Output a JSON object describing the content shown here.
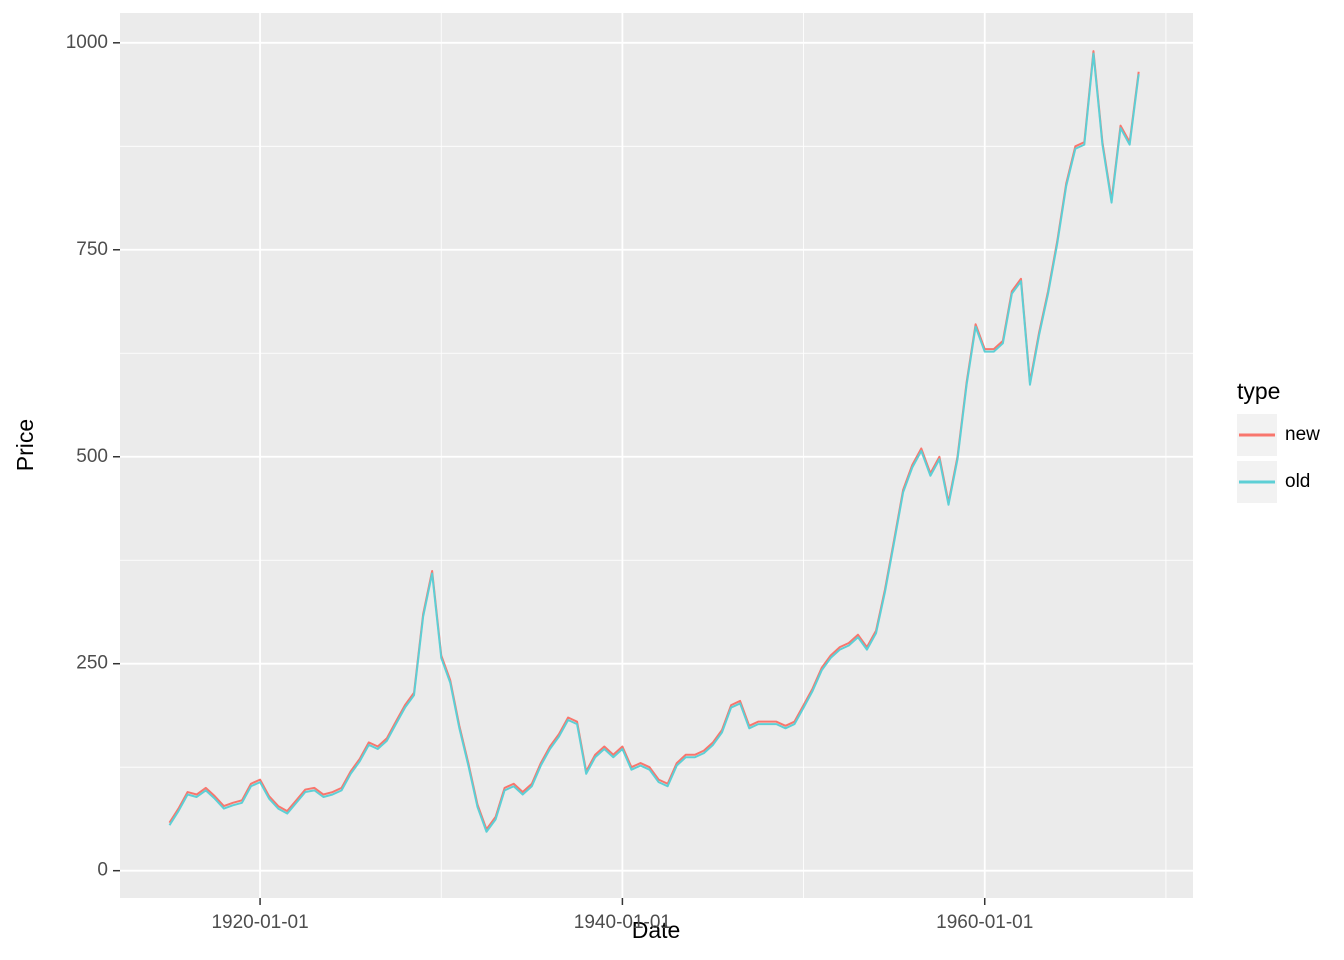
{
  "chart_data": {
    "type": "line",
    "xlabel": "Date",
    "ylabel": "Price",
    "legend_title": "type",
    "x": [
      "1915-01-01",
      "1915-07-01",
      "1916-01-01",
      "1916-07-01",
      "1917-01-01",
      "1917-07-01",
      "1918-01-01",
      "1918-07-01",
      "1919-01-01",
      "1919-07-01",
      "1920-01-01",
      "1920-07-01",
      "1921-01-01",
      "1921-07-01",
      "1922-01-01",
      "1922-07-01",
      "1923-01-01",
      "1923-07-01",
      "1924-01-01",
      "1924-07-01",
      "1925-01-01",
      "1925-07-01",
      "1926-01-01",
      "1926-07-01",
      "1927-01-01",
      "1927-07-01",
      "1928-01-01",
      "1928-07-01",
      "1929-01-01",
      "1929-07-01",
      "1930-01-01",
      "1930-07-01",
      "1931-01-01",
      "1931-07-01",
      "1932-01-01",
      "1932-07-01",
      "1933-01-01",
      "1933-07-01",
      "1934-01-01",
      "1934-07-01",
      "1935-01-01",
      "1935-07-01",
      "1936-01-01",
      "1936-07-01",
      "1937-01-01",
      "1937-07-01",
      "1938-01-01",
      "1938-07-01",
      "1939-01-01",
      "1939-07-01",
      "1940-01-01",
      "1940-07-01",
      "1941-01-01",
      "1941-07-01",
      "1942-01-01",
      "1942-07-01",
      "1943-01-01",
      "1943-07-01",
      "1944-01-01",
      "1944-07-01",
      "1945-01-01",
      "1945-07-01",
      "1946-01-01",
      "1946-07-01",
      "1947-01-01",
      "1947-07-01",
      "1948-01-01",
      "1948-07-01",
      "1949-01-01",
      "1949-07-01",
      "1950-01-01",
      "1950-07-01",
      "1951-01-01",
      "1951-07-01",
      "1952-01-01",
      "1952-07-01",
      "1953-01-01",
      "1953-07-01",
      "1954-01-01",
      "1954-07-01",
      "1955-01-01",
      "1955-07-01",
      "1956-01-01",
      "1956-07-01",
      "1957-01-01",
      "1957-07-01",
      "1958-01-01",
      "1958-07-01",
      "1959-01-01",
      "1959-07-01",
      "1960-01-01",
      "1960-07-01",
      "1961-01-01",
      "1961-07-01",
      "1962-01-01",
      "1962-07-01",
      "1963-01-01",
      "1963-07-01",
      "1964-01-01",
      "1964-07-01",
      "1965-01-01",
      "1965-07-01",
      "1966-01-01",
      "1966-07-01",
      "1967-01-01",
      "1967-07-01",
      "1968-01-01",
      "1968-07-01"
    ],
    "series": [
      {
        "name": "new",
        "color": "#F8766D",
        "values": [
          58,
          75,
          95,
          92,
          100,
          90,
          78,
          82,
          85,
          105,
          110,
          90,
          78,
          72,
          85,
          98,
          100,
          92,
          95,
          100,
          120,
          135,
          155,
          150,
          160,
          180,
          200,
          215,
          310,
          362,
          260,
          230,
          175,
          130,
          80,
          50,
          65,
          100,
          105,
          95,
          105,
          130,
          150,
          165,
          185,
          180,
          120,
          140,
          150,
          140,
          150,
          125,
          130,
          125,
          110,
          105,
          130,
          140,
          140,
          145,
          155,
          170,
          200,
          205,
          175,
          180,
          180,
          180,
          175,
          180,
          200,
          220,
          245,
          260,
          270,
          275,
          285,
          270,
          290,
          340,
          400,
          460,
          490,
          510,
          480,
          500,
          445,
          500,
          590,
          660,
          630,
          630,
          640,
          700,
          715,
          590,
          650,
          700,
          760,
          830,
          875,
          880,
          990,
          880,
          810,
          900,
          880,
          965
        ]
      },
      {
        "name": "old",
        "color": "#5DCFD5",
        "values": [
          55,
          72,
          92,
          89,
          97,
          87,
          75,
          79,
          82,
          102,
          107,
          87,
          75,
          69,
          82,
          95,
          97,
          89,
          92,
          97,
          117,
          132,
          152,
          147,
          157,
          177,
          197,
          212,
          307,
          359,
          257,
          227,
          172,
          127,
          77,
          47,
          62,
          97,
          102,
          92,
          102,
          127,
          147,
          162,
          182,
          177,
          117,
          137,
          147,
          137,
          147,
          122,
          127,
          122,
          107,
          102,
          127,
          137,
          137,
          142,
          152,
          167,
          197,
          202,
          172,
          177,
          177,
          177,
          172,
          177,
          197,
          217,
          242,
          257,
          267,
          272,
          282,
          267,
          287,
          337,
          397,
          457,
          487,
          507,
          477,
          497,
          442,
          497,
          587,
          657,
          627,
          627,
          637,
          697,
          712,
          587,
          647,
          697,
          757,
          827,
          872,
          877,
          987,
          877,
          807,
          897,
          877,
          962
        ]
      }
    ],
    "xlim": [
      "1912-04-08",
      "1971-07-01"
    ],
    "xticks": [
      "1920-01-01",
      "1940-01-01",
      "1960-01-01"
    ],
    "xminor": [
      "1930-01-01",
      "1950-01-01",
      "1970-01-01"
    ],
    "ylim": [
      -33,
      1036
    ],
    "yticks": [
      0,
      250,
      500,
      750,
      1000
    ],
    "yminor": [
      125,
      375,
      625,
      875
    ],
    "grid": true
  }
}
